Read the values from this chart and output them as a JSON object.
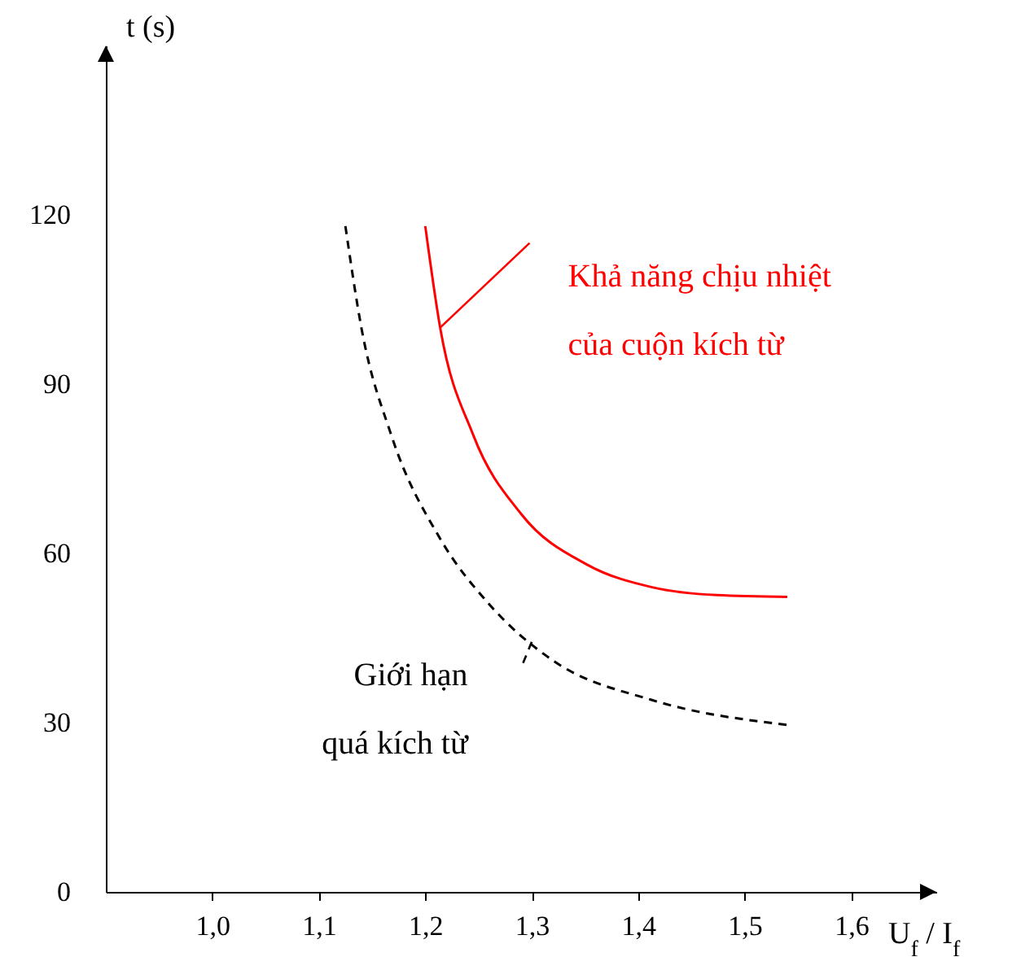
{
  "chart_data": {
    "type": "line",
    "xlabel": "U$_{f}$ / I$_{f}$",
    "ylabel": "t (s)",
    "xlim": [
      0.9,
      1.68
    ],
    "ylim": [
      0,
      150
    ],
    "xticks": [
      {
        "value": 1.0,
        "label": "1,0"
      },
      {
        "value": 1.1,
        "label": "1,1"
      },
      {
        "value": 1.2,
        "label": "1,2"
      },
      {
        "value": 1.3,
        "label": "1,3"
      },
      {
        "value": 1.4,
        "label": "1,4"
      },
      {
        "value": 1.5,
        "label": "1,5"
      },
      {
        "value": 1.6,
        "label": "1,6"
      }
    ],
    "yticks": [
      0,
      30,
      60,
      90,
      120
    ],
    "grid": false,
    "series": [
      {
        "color": "#ff0000",
        "line_style": "solid",
        "x": [
          1.2,
          1.214,
          1.245,
          1.29,
          1.352,
          1.413,
          1.474,
          1.54
        ],
        "values": [
          118,
          100,
          81,
          67,
          58,
          54,
          52.6,
          52.3
        ]
      },
      {
        "color": "#000000",
        "line_style": "dashed",
        "x": [
          1.125,
          1.14,
          1.168,
          1.214,
          1.26,
          1.32,
          1.413,
          1.54
        ],
        "values": [
          118,
          100,
          81,
          62.6,
          51,
          41,
          34,
          29.6
        ]
      }
    ],
    "annotations": [
      {
        "text": "Khả năng chịu nhiệt\ncủa cuộn kích từ",
        "x": 1.214,
        "y": 100
      },
      {
        "text": "Giới hạn\nquá kích từ",
        "x": 1.3,
        "y": 44.3
      }
    ]
  }
}
